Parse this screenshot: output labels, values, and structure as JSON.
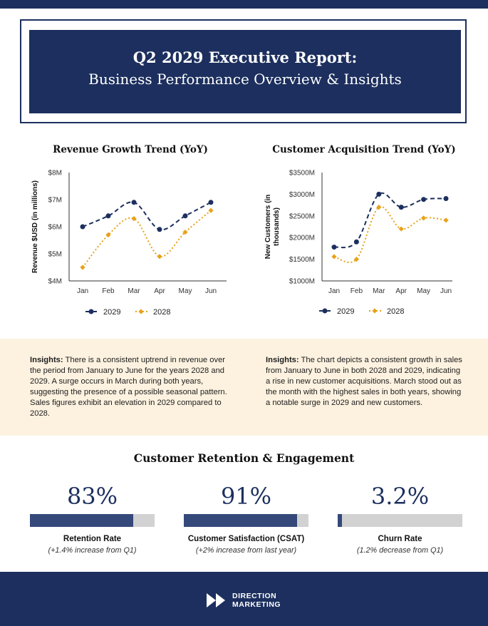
{
  "report": {
    "title_line1": "Q2 2029 Executive Report:",
    "title_line2": "Business Performance Overview & Insights"
  },
  "colors": {
    "navy": "#1c2f5e",
    "gold": "#e8a21a",
    "cream": "#fdf2e0"
  },
  "charts": {
    "revenue": {
      "title": "Revenue Growth Trend (YoY)"
    },
    "customers": {
      "title": "Customer Acquisition Trend (YoY)"
    }
  },
  "chart_data": [
    {
      "type": "line",
      "title": "Revenue Growth Trend (YoY)",
      "categories": [
        "Jan",
        "Feb",
        "Mar",
        "Apr",
        "May",
        "Jun"
      ],
      "ylabel": "Revenue $USD (in millions)",
      "ylim": [
        4,
        8
      ],
      "yticks": [
        4,
        5,
        6,
        7,
        8
      ],
      "ytick_labels": [
        "$4M",
        "$5M",
        "$6M",
        "$7M",
        "$8M"
      ],
      "series": [
        {
          "name": "2029",
          "values": [
            6.0,
            6.4,
            6.9,
            5.9,
            6.4,
            6.9
          ]
        },
        {
          "name": "2028",
          "values": [
            4.5,
            5.7,
            6.3,
            4.9,
            5.8,
            6.6
          ]
        }
      ],
      "legend": "bottom"
    },
    {
      "type": "line",
      "title": "Customer Acquisition Trend (YoY)",
      "categories": [
        "Jan",
        "Feb",
        "Mar",
        "Apr",
        "May",
        "Jun"
      ],
      "ylabel": "New Customers (in thousands)",
      "ylim": [
        1000,
        3500
      ],
      "yticks": [
        1000,
        1500,
        2000,
        2500,
        3000,
        3500
      ],
      "ytick_labels": [
        "$1000M",
        "$1500M",
        "$2000M",
        "$2500M",
        "$3000M",
        "$3500M"
      ],
      "series": [
        {
          "name": "2029",
          "values": [
            1780,
            1900,
            3000,
            2700,
            2880,
            2900
          ]
        },
        {
          "name": "2028",
          "values": [
            1560,
            1500,
            2700,
            2200,
            2450,
            2400
          ]
        }
      ],
      "legend": "bottom"
    }
  ],
  "insights": {
    "label": "Insights:",
    "left": "There is a consistent uptrend in revenue over the period from January to June for the years 2028 and 2029. A surge occurs in March during both years, suggesting the presence of a possible seasonal pattern. Sales figures exhibit an elevation in 2029 compared to 2028.",
    "right": "The chart depicts a consistent growth in sales from January to June in both 2028 and 2029, indicating a rise in new customer acquisitions. March stood out as the month with the highest sales in both years, showing a notable surge in 2029 and new customers."
  },
  "retention": {
    "title": "Customer Retention & Engagement",
    "metrics": [
      {
        "value": "83%",
        "fill": 0.83,
        "label": "Retention Rate",
        "sub": "(+1.4% increase from Q1)"
      },
      {
        "value": "91%",
        "fill": 0.91,
        "label": "Customer Satisfaction (CSAT)",
        "sub": "(+2% increase from last year)"
      },
      {
        "value": "3.2%",
        "fill": 0.032,
        "label": "Churn Rate",
        "sub": "(1.2% decrease from Q1)"
      }
    ]
  },
  "footer": {
    "brand_line1": "DIRECTION",
    "brand_line2": "MARKETING"
  }
}
